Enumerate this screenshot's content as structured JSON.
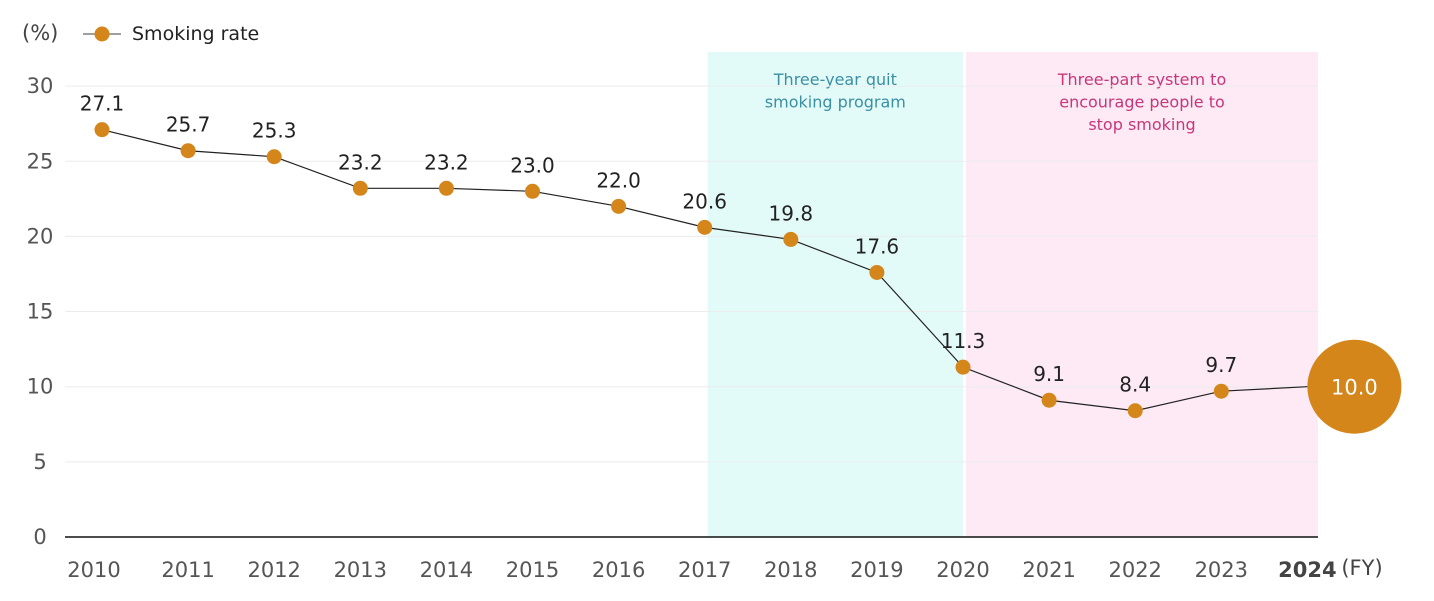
{
  "chart_data": {
    "type": "line",
    "series": [
      {
        "name": "Smoking rate",
        "x": [
          "2010",
          "2011",
          "2012",
          "2013",
          "2014",
          "2015",
          "2016",
          "2017",
          "2018",
          "2019",
          "2020",
          "2021",
          "2022",
          "2023",
          "2024"
        ],
        "values": [
          27.1,
          25.7,
          25.3,
          23.2,
          23.2,
          23.0,
          22.0,
          20.6,
          19.8,
          17.6,
          11.3,
          9.1,
          8.4,
          9.7,
          10.0
        ],
        "labels": [
          "27.1",
          "25.7",
          "25.3",
          "23.2",
          "23.2",
          "23.0",
          "22.0",
          "20.6",
          "19.8",
          "17.6",
          "11.3",
          "9.1",
          "8.4",
          "9.7",
          "10.0"
        ],
        "color": "#d4861b"
      }
    ],
    "highlight_index": 14,
    "ylabel": "(%)",
    "xlabel": "(FY)",
    "ylim": [
      0,
      30
    ],
    "yticks": [
      0,
      5,
      10,
      15,
      20,
      25,
      30
    ],
    "ytick_labels": [
      "0",
      "5",
      "10",
      "15",
      "20",
      "25",
      "30"
    ],
    "legend": {
      "label": "Smoking rate",
      "position": "top-left"
    },
    "periods": [
      {
        "lines": [
          "Three-year quit",
          "smoking program"
        ],
        "from": "2017",
        "to": "2020",
        "color": "#e2fbf9",
        "text_color": "#3b8fa3"
      },
      {
        "lines": [
          "Three-part system to",
          "encourage people to",
          "stop smoking"
        ],
        "from": "2020",
        "to": "2024",
        "color": "#fdeaf5",
        "text_color": "#c8367a"
      }
    ]
  }
}
